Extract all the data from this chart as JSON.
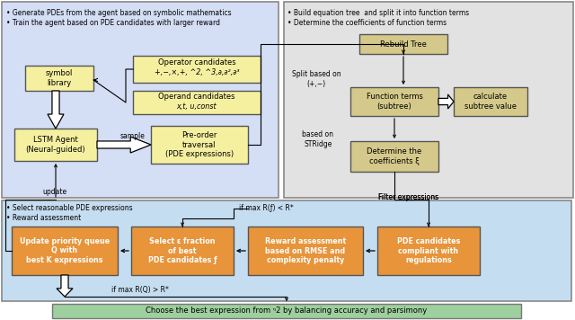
{
  "fig_width": 6.4,
  "fig_height": 3.56,
  "dpi": 100,
  "bg_color": "#ffffff",
  "top_left_bg": "#d4def5",
  "top_right_bg": "#e2e2e2",
  "bottom_bg": "#c5ddf0",
  "bottom_final_bg": "#9ecf9e",
  "yellow_box": "#f5f0a0",
  "tan_box": "#d4c98a",
  "orange_box": "#e8943a",
  "bullet_left_top": [
    "Generate PDEs from the agent based on symbolic mathematics",
    "Train the agent based on PDE candidates with larger reward"
  ],
  "bullet_right_top": [
    "Build equation tree  and split it into function terms",
    "Determine the coefficients of function terms"
  ],
  "bullet_bottom_left": [
    "Select reasonable PDE expressions",
    "Reward assessment"
  ]
}
